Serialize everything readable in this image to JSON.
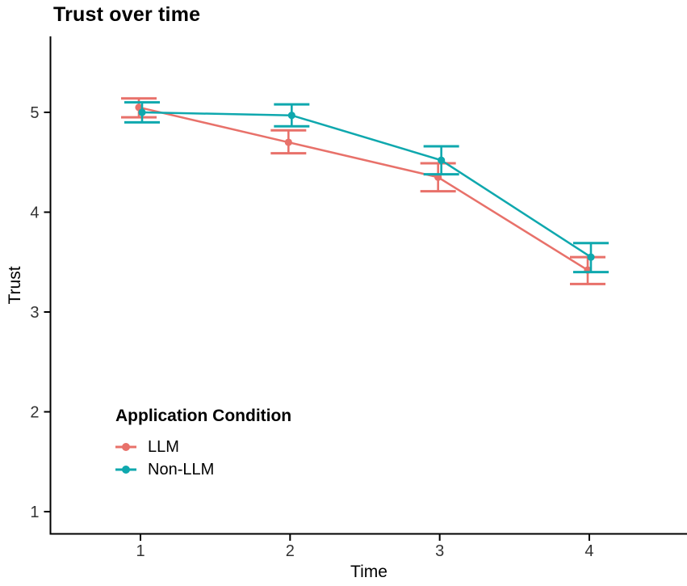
{
  "chart_data": {
    "type": "line",
    "title": "Trust over time",
    "xlabel": "Time",
    "ylabel": "Trust",
    "x_ticks": [
      "1",
      "2",
      "3",
      "4"
    ],
    "y_ticks": [
      "1",
      "2",
      "3",
      "4",
      "5"
    ],
    "xlim": [
      0.4,
      4.65
    ],
    "ylim": [
      0.77,
      5.76
    ],
    "grid": false,
    "error_bars": true,
    "legend": {
      "title": "Application Condition",
      "position": "inside-bottom-left"
    },
    "axis_color": "#000000",
    "tick_label_color": "#333333",
    "background": "#FFFFFF",
    "x": [
      1,
      2,
      3,
      4
    ],
    "series": [
      {
        "name": "LLM",
        "color": "#E8716A",
        "mean": [
          5.05,
          4.7,
          4.35,
          3.42
        ],
        "ci_low": [
          4.95,
          4.59,
          4.21,
          3.28
        ],
        "ci_high": [
          5.14,
          4.82,
          4.49,
          3.55
        ]
      },
      {
        "name": "Non-LLM",
        "color": "#0FA8AE",
        "mean": [
          5.0,
          4.97,
          4.52,
          3.55
        ],
        "ci_low": [
          4.9,
          4.86,
          4.38,
          3.4
        ],
        "ci_high": [
          5.1,
          5.08,
          4.66,
          3.69
        ]
      }
    ]
  }
}
